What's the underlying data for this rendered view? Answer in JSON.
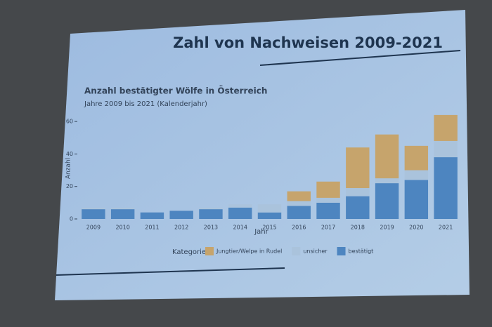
{
  "chart_data": {
    "type": "stacked_bar",
    "slide_title": "Zahl von Nachweisen 2009-2021",
    "title": "Anzahl bestätigter Wölfe in Österreich",
    "subtitle": "Jahre 2009 bis 2021 (Kalenderjahr)",
    "x_label": "Jahr",
    "y_label": "Anzahl",
    "legend_title": "Kategorie",
    "categories": [
      "2009",
      "2010",
      "2011",
      "2012",
      "2013",
      "2014",
      "2015",
      "2016",
      "2017",
      "2018",
      "2019",
      "2020",
      "2021"
    ],
    "series": [
      {
        "name": "bestätigt",
        "color": "#4d85c0",
        "values": [
          6,
          6,
          4,
          5,
          6,
          7,
          4,
          8,
          10,
          14,
          22,
          24,
          38
        ]
      },
      {
        "name": "unsicher",
        "color": "#aac3dc",
        "values": [
          1,
          1,
          0,
          0,
          1,
          2,
          5,
          3,
          3,
          5,
          3,
          6,
          10
        ]
      },
      {
        "name": "Jungtier/Welpe in Rudel",
        "color": "#c6a46c",
        "values": [
          0,
          0,
          0,
          0,
          0,
          0,
          0,
          6,
          10,
          25,
          27,
          15,
          16
        ]
      }
    ],
    "ylim": [
      0,
      70
    ],
    "yticks": [
      0,
      20,
      40,
      60
    ],
    "grid": false
  }
}
